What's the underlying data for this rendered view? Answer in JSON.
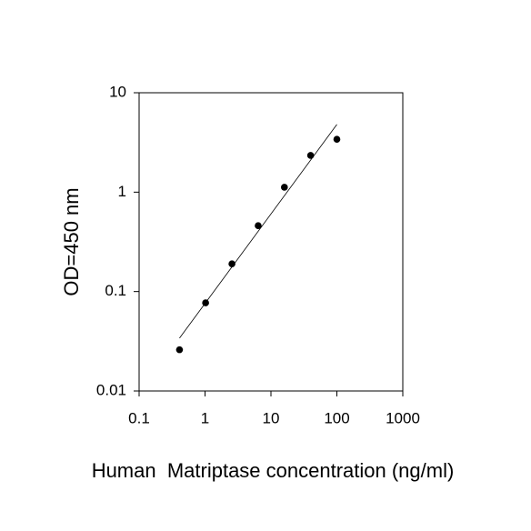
{
  "chart_data": {
    "type": "scatter",
    "x_label": "Human  Matriptase concentration (ng/ml)",
    "y_label": "OD=450 nm",
    "x": [
      0.41,
      1.02,
      2.56,
      6.4,
      16,
      40,
      100
    ],
    "values": [
      0.026,
      0.077,
      0.19,
      0.46,
      1.12,
      2.34,
      3.4
    ],
    "color": "#000000",
    "fit": {
      "x": [
        0.41,
        100
      ],
      "values": [
        0.034,
        4.8
      ],
      "color": "#000000"
    },
    "xscale": "log",
    "yscale": "log",
    "xlim": [
      0.1,
      1000
    ],
    "ylim": [
      0.01,
      10
    ],
    "xticks": [
      0.1,
      1,
      10,
      100,
      1000
    ],
    "yticks": [
      0.01,
      0.1,
      1,
      10
    ]
  }
}
